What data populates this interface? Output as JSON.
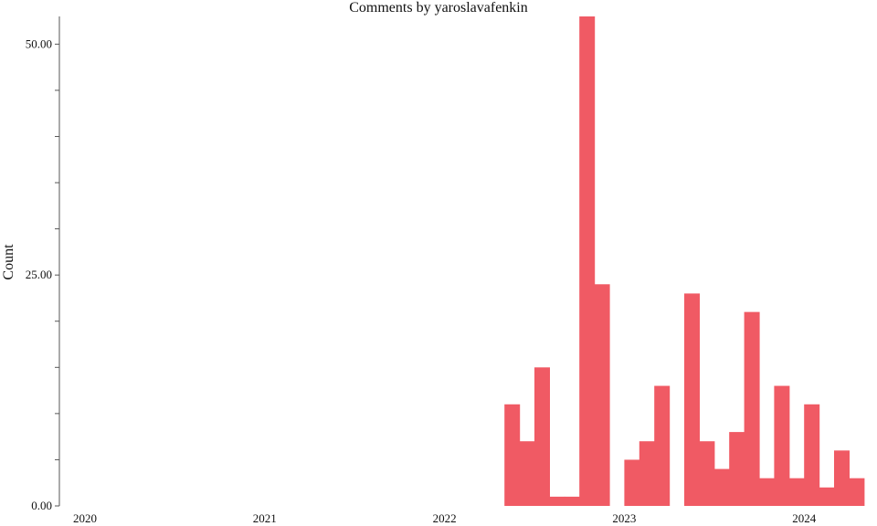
{
  "chart_data": {
    "type": "bar",
    "title": "Comments by yaroslavafenkin",
    "xlabel": "",
    "ylabel": "Count",
    "bar_color": "#f05a64",
    "x_ticks": [
      "2020",
      "2021",
      "2022",
      "2023",
      "2024"
    ],
    "y_ticks": [
      "0.00",
      "25.00",
      "50.00"
    ],
    "ylim": [
      0,
      53
    ],
    "xlim": [
      "2019-12",
      "2024-05"
    ],
    "grid": false,
    "bins": [
      {
        "month": "2022-05",
        "value": 11
      },
      {
        "month": "2022-06",
        "value": 7
      },
      {
        "month": "2022-07",
        "value": 15
      },
      {
        "month": "2022-08",
        "value": 1
      },
      {
        "month": "2022-09",
        "value": 1
      },
      {
        "month": "2022-10",
        "value": 53
      },
      {
        "month": "2022-11",
        "value": 24
      },
      {
        "month": "2022-12",
        "value": 0
      },
      {
        "month": "2023-01",
        "value": 5
      },
      {
        "month": "2023-02",
        "value": 7
      },
      {
        "month": "2023-03",
        "value": 13
      },
      {
        "month": "2023-04",
        "value": 0
      },
      {
        "month": "2023-05",
        "value": 23
      },
      {
        "month": "2023-06",
        "value": 7
      },
      {
        "month": "2023-07",
        "value": 4
      },
      {
        "month": "2023-08",
        "value": 8
      },
      {
        "month": "2023-09",
        "value": 21
      },
      {
        "month": "2023-10",
        "value": 3
      },
      {
        "month": "2023-11",
        "value": 13
      },
      {
        "month": "2023-12",
        "value": 3
      },
      {
        "month": "2024-01",
        "value": 11
      },
      {
        "month": "2024-02",
        "value": 2
      },
      {
        "month": "2024-03",
        "value": 6
      },
      {
        "month": "2024-04",
        "value": 3
      }
    ]
  }
}
